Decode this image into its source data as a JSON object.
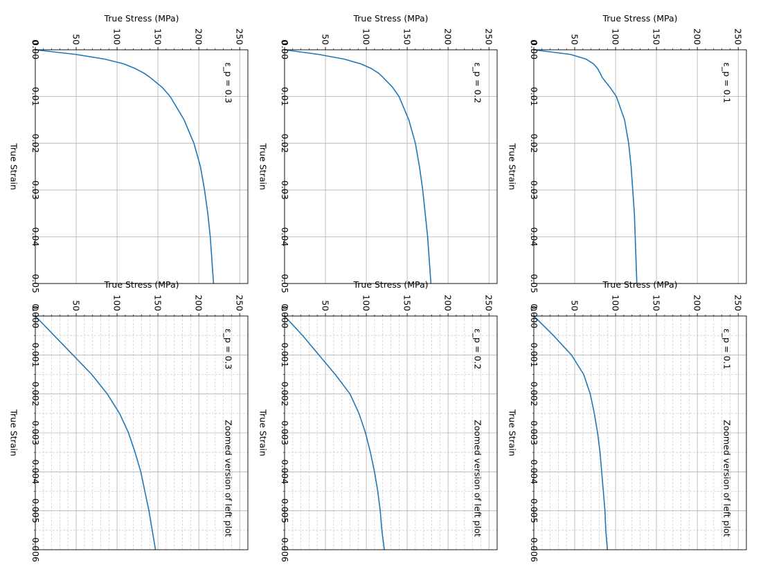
{
  "colors": {
    "line": "#1f77b4",
    "grid_major": "#b0b0b0",
    "grid_minor": "#d0d0d0",
    "axes": "#000000"
  },
  "chart_data": [
    {
      "type": "line",
      "panel": "full",
      "annotation": "ε_p = 0.3",
      "xlabel": "True Strain",
      "ylabel": "True Stress (MPa)",
      "xlim": [
        0,
        0.05
      ],
      "ylim": [
        0,
        260
      ],
      "xticks": [
        "0.00",
        "0.01",
        "0.02",
        "0.03",
        "0.04",
        "0.05"
      ],
      "yticks": [
        "0",
        "50",
        "100",
        "150",
        "200",
        "250"
      ],
      "grid": "major",
      "x": [
        0,
        0.001,
        0.002,
        0.003,
        0.004,
        0.005,
        0.006,
        0.008,
        0.01,
        0.015,
        0.02,
        0.025,
        0.03,
        0.035,
        0.04,
        0.045,
        0.05
      ],
      "y": [
        0,
        50,
        85,
        108,
        122,
        133,
        141,
        155,
        165,
        182,
        194,
        202,
        207,
        211,
        214,
        216,
        218
      ]
    },
    {
      "type": "line",
      "panel": "full",
      "annotation": "ε_p = 0.2",
      "xlabel": "True Strain",
      "ylabel": "True Stress (MPa)",
      "xlim": [
        0,
        0.05
      ],
      "ylim": [
        0,
        260
      ],
      "xticks": [
        "0.00",
        "0.01",
        "0.02",
        "0.03",
        "0.04",
        "0.05"
      ],
      "yticks": [
        "0",
        "50",
        "100",
        "150",
        "200",
        "250"
      ],
      "grid": "major",
      "x": [
        0,
        0.001,
        0.002,
        0.003,
        0.004,
        0.005,
        0.006,
        0.008,
        0.01,
        0.015,
        0.02,
        0.025,
        0.03,
        0.035,
        0.04,
        0.045,
        0.05
      ],
      "y": [
        0,
        42,
        73,
        93,
        106,
        115,
        121,
        132,
        140,
        152,
        160,
        165,
        169,
        172,
        175,
        177,
        179
      ]
    },
    {
      "type": "line",
      "panel": "full",
      "annotation": "ε_p = 0.1",
      "xlabel": "True Strain",
      "ylabel": "True Stress (MPa)",
      "xlim": [
        0,
        0.05
      ],
      "ylim": [
        0,
        260
      ],
      "xticks": [
        "0.00",
        "0.01",
        "0.02",
        "0.03",
        "0.04",
        "0.05"
      ],
      "yticks": [
        "0",
        "50",
        "100",
        "150",
        "200",
        "250"
      ],
      "grid": "major",
      "x": [
        0,
        0.001,
        0.002,
        0.003,
        0.004,
        0.005,
        0.006,
        0.008,
        0.01,
        0.015,
        0.02,
        0.025,
        0.03,
        0.035,
        0.04,
        0.045,
        0.05
      ],
      "y": [
        0,
        45,
        64,
        73,
        78,
        81,
        84,
        93,
        101,
        111,
        116,
        119,
        121,
        123,
        124,
        125,
        126
      ]
    },
    {
      "type": "line",
      "panel": "zoom",
      "annotation": "ε_p = 0.3",
      "note": "Zoomed version of left plot",
      "xlabel": "True Strain",
      "ylabel": "True Stress (MPa)",
      "xlim": [
        0,
        0.006
      ],
      "ylim": [
        0,
        260
      ],
      "xticks": [
        "0.000",
        "0.001",
        "0.002",
        "0.003",
        "0.004",
        "0.005",
        "0.006"
      ],
      "yticks": [
        "0",
        "50",
        "100",
        "150",
        "200",
        "250"
      ],
      "grid": "major+minor",
      "x": [
        0,
        0.0005,
        0.001,
        0.0015,
        0.002,
        0.0025,
        0.003,
        0.0035,
        0.004,
        0.0045,
        0.005,
        0.0055,
        0.006
      ],
      "y": [
        0,
        23,
        46,
        69,
        88,
        103,
        114,
        122,
        129,
        134,
        139,
        143,
        147
      ]
    },
    {
      "type": "line",
      "panel": "zoom",
      "annotation": "ε_p = 0.2",
      "note": "Zoomed version of left plot",
      "xlabel": "True Strain",
      "ylabel": "True Stress (MPa)",
      "xlim": [
        0,
        0.006
      ],
      "ylim": [
        0,
        260
      ],
      "xticks": [
        "0.000",
        "0.001",
        "0.002",
        "0.003",
        "0.004",
        "0.005",
        "0.006"
      ],
      "yticks": [
        "0",
        "50",
        "100",
        "150",
        "200",
        "250"
      ],
      "grid": "major+minor",
      "x": [
        0,
        0.0005,
        0.001,
        0.0015,
        0.002,
        0.0025,
        0.003,
        0.0035,
        0.004,
        0.0045,
        0.005,
        0.0055,
        0.006
      ],
      "y": [
        0,
        22,
        42,
        62,
        80,
        91,
        99,
        105,
        110,
        114,
        117,
        119,
        122
      ]
    },
    {
      "type": "line",
      "panel": "zoom",
      "annotation": "ε_p = 0.1",
      "note": "Zoomed version of left plot",
      "xlabel": "True Strain",
      "ylabel": "True Stress (MPa)",
      "xlim": [
        0,
        0.006
      ],
      "ylim": [
        0,
        260
      ],
      "xticks": [
        "0.000",
        "0.001",
        "0.002",
        "0.003",
        "0.004",
        "0.005",
        "0.006"
      ],
      "yticks": [
        "0",
        "50",
        "100",
        "150",
        "200",
        "250"
      ],
      "grid": "major+minor",
      "x": [
        0,
        0.0005,
        0.001,
        0.0015,
        0.002,
        0.0025,
        0.003,
        0.0035,
        0.004,
        0.0045,
        0.005,
        0.0055,
        0.006
      ],
      "y": [
        0,
        24,
        46,
        61,
        69,
        74,
        78,
        81,
        83,
        85,
        87,
        88,
        90
      ]
    }
  ]
}
